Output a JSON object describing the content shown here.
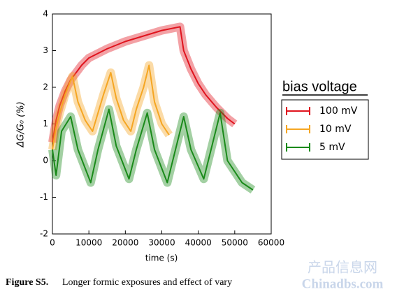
{
  "chart_data": {
    "type": "line",
    "xlabel": "time (s)",
    "ylabel": "ΔG/G₀ (%)",
    "legend_title": "bias voltage",
    "legend": "right",
    "xlim": [
      0,
      60000
    ],
    "xticks": [
      0,
      10000,
      20000,
      30000,
      40000,
      50000,
      60000
    ],
    "ylim": [
      -2,
      4
    ],
    "yticks": [
      -2,
      -1,
      0,
      1,
      2,
      3,
      4
    ],
    "series": [
      {
        "name": "100 mV",
        "color": "#e0141e",
        "x": [
          0,
          1000,
          2000,
          3500,
          5000,
          8000,
          10000,
          15000,
          20000,
          25000,
          30000,
          35000,
          36000,
          38000,
          40000,
          42000,
          45000,
          48000,
          50000
        ],
        "values": [
          0.5,
          1.1,
          1.5,
          1.9,
          2.2,
          2.6,
          2.8,
          3.05,
          3.25,
          3.4,
          3.55,
          3.65,
          3.0,
          2.5,
          2.1,
          1.8,
          1.45,
          1.15,
          1.0
        ]
      },
      {
        "name": "10 mV",
        "color": "#f5a623",
        "x": [
          0,
          1000,
          2000,
          3500,
          5500,
          7000,
          9000,
          11000,
          12500,
          14000,
          16000,
          17500,
          19500,
          21500,
          23000,
          25000,
          26500,
          28000,
          30000,
          32000
        ],
        "values": [
          0.3,
          0.9,
          1.3,
          1.8,
          2.3,
          1.6,
          1.1,
          0.8,
          1.3,
          1.8,
          2.4,
          1.7,
          1.1,
          0.8,
          1.4,
          2.0,
          2.6,
          1.6,
          1.0,
          0.7
        ]
      },
      {
        "name": "5 mV",
        "color": "#1a8a1a",
        "x": [
          0,
          1000,
          2500,
          5000,
          7000,
          10500,
          12500,
          15500,
          17500,
          21000,
          23000,
          26000,
          28000,
          31500,
          33500,
          36000,
          38000,
          41500,
          43500,
          46000,
          48000,
          52000,
          55000
        ],
        "values": [
          0.3,
          -0.4,
          0.8,
          1.2,
          0.3,
          -0.6,
          0.3,
          1.4,
          0.4,
          -0.5,
          0.3,
          1.3,
          0.3,
          -0.6,
          0.2,
          1.2,
          0.3,
          -0.5,
          0.3,
          1.3,
          0.0,
          -0.6,
          -0.8
        ]
      }
    ]
  },
  "caption": {
    "label": "Figure S5.",
    "text": "Longer formic exposures and effect of vary"
  },
  "watermark": {
    "line1": "产品信息网",
    "line2": "Chinadbs.com"
  }
}
